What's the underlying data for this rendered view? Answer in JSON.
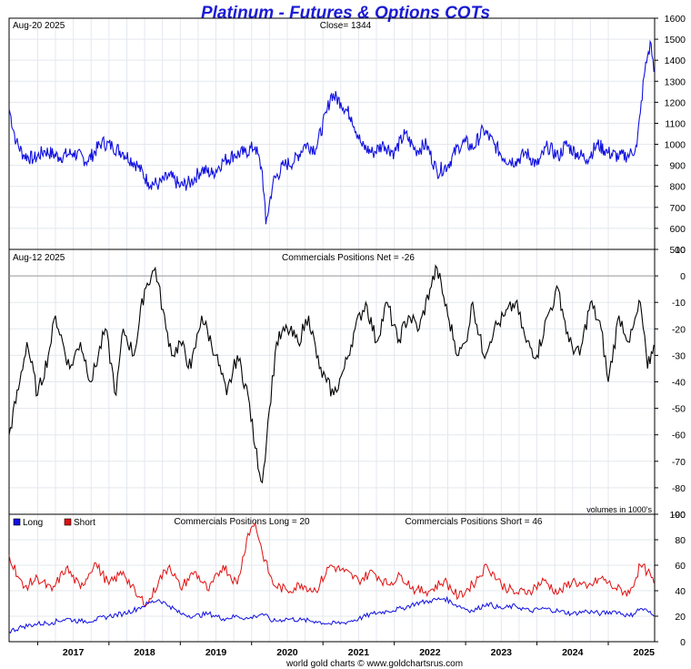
{
  "title": "Platinum - Futures & Options COTs",
  "footer": "world gold charts © www.goldchartsrus.com",
  "colors": {
    "title": "#1b1bd6",
    "price": "#1010e0",
    "net": "#000000",
    "long": "#1010e0",
    "short": "#e01010",
    "grid": "#e3e8ee"
  },
  "chart_data": [
    {
      "type": "line",
      "panel": "price",
      "header_left": "Aug-20  2025",
      "header_center": "Close= 1344",
      "ylim": [
        500,
        1600
      ],
      "yticks": [
        500,
        600,
        700,
        800,
        900,
        1000,
        1100,
        1200,
        1300,
        1400,
        1500,
        1600
      ],
      "x": [
        2016.6,
        2016.7,
        2016.8,
        2016.95,
        2017.1,
        2017.3,
        2017.5,
        2017.7,
        2017.9,
        2018.05,
        2018.2,
        2018.4,
        2018.55,
        2018.7,
        2018.85,
        2019.0,
        2019.15,
        2019.3,
        2019.45,
        2019.6,
        2019.75,
        2019.9,
        2020.05,
        2020.15,
        2020.2,
        2020.3,
        2020.45,
        2020.6,
        2020.75,
        2020.9,
        2021.05,
        2021.12,
        2021.25,
        2021.4,
        2021.55,
        2021.7,
        2021.85,
        2022.0,
        2022.15,
        2022.3,
        2022.45,
        2022.6,
        2022.75,
        2022.9,
        2023.0,
        2023.1,
        2023.25,
        2023.4,
        2023.55,
        2023.7,
        2023.85,
        2024.0,
        2024.15,
        2024.3,
        2024.4,
        2024.55,
        2024.7,
        2024.85,
        2025.0,
        2025.15,
        2025.3,
        2025.4,
        2025.45,
        2025.5,
        2025.55,
        2025.6,
        2025.64
      ],
      "series": [
        {
          "values": [
            1170,
            1010,
            950,
            930,
            970,
            940,
            960,
            920,
            1010,
            990,
            960,
            900,
            820,
            810,
            850,
            800,
            820,
            880,
            860,
            920,
            950,
            960,
            990,
            870,
            620,
            820,
            900,
            920,
            1000,
            980,
            1150,
            1240,
            1200,
            1130,
            990,
            960,
            1000,
            960,
            1050,
            970,
            1000,
            870,
            900,
            990,
            1010,
            980,
            1070,
            1000,
            930,
            920,
            960,
            900,
            990,
            940,
            1000,
            960,
            930,
            1000,
            960,
            940,
            950,
            990,
            1150,
            1320,
            1420,
            1480,
            1344
          ]
        }
      ]
    },
    {
      "type": "line",
      "panel": "net",
      "header_left": "Aug-12  2025",
      "header_center": "Commercials Positions Net = -26",
      "note": "volumes in 1000's",
      "ylim": [
        -90,
        10
      ],
      "yticks": [
        -90,
        -80,
        -70,
        -60,
        -50,
        -40,
        -30,
        -20,
        -10,
        0,
        10
      ],
      "x": [
        2016.6,
        2016.75,
        2016.85,
        2017.0,
        2017.15,
        2017.25,
        2017.45,
        2017.6,
        2017.75,
        2017.95,
        2018.1,
        2018.2,
        2018.35,
        2018.5,
        2018.65,
        2018.8,
        2018.9,
        2019.0,
        2019.15,
        2019.3,
        2019.5,
        2019.65,
        2019.8,
        2019.95,
        2020.05,
        2020.15,
        2020.25,
        2020.35,
        2020.5,
        2020.65,
        2020.8,
        2020.95,
        2021.05,
        2021.15,
        2021.3,
        2021.45,
        2021.6,
        2021.75,
        2021.9,
        2022.05,
        2022.2,
        2022.35,
        2022.5,
        2022.6,
        2022.75,
        2022.9,
        2023.0,
        2023.1,
        2023.25,
        2023.4,
        2023.55,
        2023.7,
        2023.85,
        2024.0,
        2024.15,
        2024.3,
        2024.45,
        2024.6,
        2024.75,
        2024.9,
        2025.0,
        2025.15,
        2025.3,
        2025.45,
        2025.55,
        2025.64
      ],
      "series": [
        {
          "values": [
            -60,
            -40,
            -25,
            -45,
            -30,
            -15,
            -35,
            -25,
            -40,
            -20,
            -45,
            -20,
            -30,
            -5,
            3,
            -20,
            -30,
            -25,
            -35,
            -15,
            -30,
            -45,
            -30,
            -45,
            -65,
            -78,
            -50,
            -25,
            -20,
            -25,
            -15,
            -35,
            -40,
            -45,
            -35,
            -20,
            -10,
            -25,
            -10,
            -25,
            -15,
            -20,
            -5,
            3,
            -15,
            -30,
            -25,
            -10,
            -30,
            -20,
            -15,
            -10,
            -25,
            -30,
            -15,
            -5,
            -25,
            -30,
            -10,
            -20,
            -40,
            -15,
            -25,
            -10,
            -35,
            -26
          ]
        }
      ]
    },
    {
      "type": "line",
      "panel": "long-short",
      "header_center": "Commercials Positions Long = 20",
      "header_right": "Commercials Positions Short = 46",
      "legend": [
        {
          "label": "Long",
          "color": "#1010e0"
        },
        {
          "label": "Short",
          "color": "#e01010"
        }
      ],
      "ylim": [
        0,
        100
      ],
      "yticks": [
        0,
        20,
        40,
        60,
        80,
        100
      ],
      "x": [
        2016.6,
        2016.8,
        2017.0,
        2017.2,
        2017.4,
        2017.6,
        2017.8,
        2018.0,
        2018.2,
        2018.4,
        2018.55,
        2018.7,
        2018.85,
        2019.0,
        2019.2,
        2019.4,
        2019.6,
        2019.8,
        2019.95,
        2020.05,
        2020.15,
        2020.3,
        2020.5,
        2020.7,
        2020.9,
        2021.1,
        2021.3,
        2021.5,
        2021.7,
        2021.9,
        2022.1,
        2022.3,
        2022.5,
        2022.7,
        2022.9,
        2023.1,
        2023.3,
        2023.5,
        2023.7,
        2023.9,
        2024.1,
        2024.3,
        2024.5,
        2024.7,
        2024.9,
        2025.1,
        2025.3,
        2025.45,
        2025.55,
        2025.64
      ],
      "xticks": [
        "2017",
        "2018",
        "2019",
        "2020",
        "2021",
        "2022",
        "2023",
        "2024",
        "2025"
      ],
      "series": [
        {
          "name": "Long",
          "values": [
            8,
            12,
            14,
            15,
            18,
            16,
            17,
            20,
            22,
            26,
            30,
            33,
            28,
            22,
            20,
            22,
            18,
            20,
            18,
            20,
            22,
            16,
            18,
            17,
            16,
            14,
            15,
            18,
            22,
            24,
            26,
            30,
            32,
            34,
            28,
            24,
            30,
            26,
            28,
            24,
            26,
            24,
            22,
            24,
            22,
            24,
            20,
            26,
            24,
            20
          ]
        },
        {
          "name": "Short",
          "values": [
            68,
            42,
            50,
            40,
            58,
            42,
            62,
            45,
            55,
            35,
            30,
            48,
            60,
            42,
            55,
            40,
            60,
            45,
            85,
            93,
            70,
            45,
            40,
            45,
            40,
            60,
            55,
            48,
            55,
            45,
            52,
            40,
            40,
            48,
            35,
            45,
            60,
            45,
            38,
            40,
            48,
            38,
            48,
            42,
            50,
            42,
            38,
            60,
            55,
            46
          ]
        }
      ]
    }
  ]
}
